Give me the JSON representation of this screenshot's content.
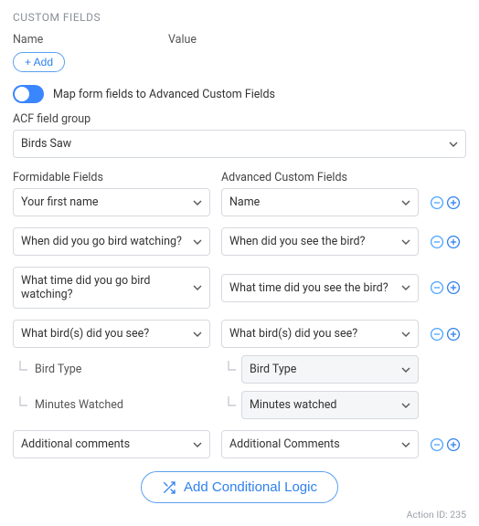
{
  "colors": {
    "accent": "#2f80ed",
    "toggle_on_bg": "#3a86ff",
    "minus": "#4aa3ff",
    "plus": "#2f80ed",
    "sub_select_bg": "#f5f6f8"
  },
  "section_title": "CUSTOM FIELDS",
  "head": {
    "name": "Name",
    "value": "Value"
  },
  "add_label": "+ Add",
  "toggle": {
    "on": true,
    "label": "Map form fields to Advanced Custom Fields"
  },
  "acf_group": {
    "label": "ACF field group",
    "value": "Birds Saw"
  },
  "cols": {
    "left": "Formidable Fields",
    "right": "Advanced Custom Fields"
  },
  "mappings": [
    {
      "left": "Your first name",
      "right": "Name",
      "subs": []
    },
    {
      "left": "When did you go bird watching?",
      "right": "When did you see the bird?",
      "subs": []
    },
    {
      "left": "What time did you go bird watching?",
      "right": "What time did you see the bird?",
      "subs": []
    },
    {
      "left": "What bird(s) did you see?",
      "right": "What bird(s) did you see?",
      "subs": [
        {
          "left": "Bird Type",
          "right": "Bird Type"
        },
        {
          "left": "Minutes Watched",
          "right": "Minutes watched"
        }
      ]
    },
    {
      "left": "Additional comments",
      "right": "Additional Comments",
      "subs": []
    }
  ],
  "conditional_label": "Add Conditional Logic",
  "footer": "Action ID: 235"
}
